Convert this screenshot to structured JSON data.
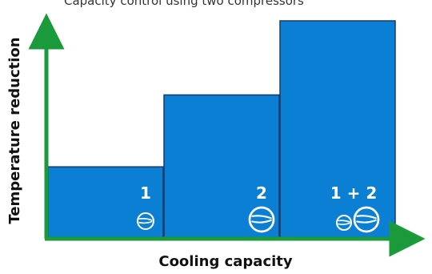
{
  "caption_fragment": "Capacity control using two compressors",
  "x_axis": {
    "label": "Cooling capacity"
  },
  "y_axis": {
    "label": "Temperature reduction"
  },
  "stages": [
    {
      "label": "1",
      "level": 0.33,
      "compressors": [
        "small"
      ]
    },
    {
      "label": "2",
      "level": 0.66,
      "compressors": [
        "large"
      ]
    },
    {
      "label": "1 + 2",
      "level": 1.0,
      "compressors": [
        "small",
        "large"
      ]
    }
  ],
  "colors": {
    "bar_fill": "#0a7fd3",
    "bar_edge": "#1a3b66",
    "axis": "#1a9a3a",
    "bar_text": "#ffffff",
    "axis_text": "#111111"
  },
  "icons": {
    "small_compressor": "compressor-small-icon",
    "large_compressor": "compressor-large-icon"
  }
}
